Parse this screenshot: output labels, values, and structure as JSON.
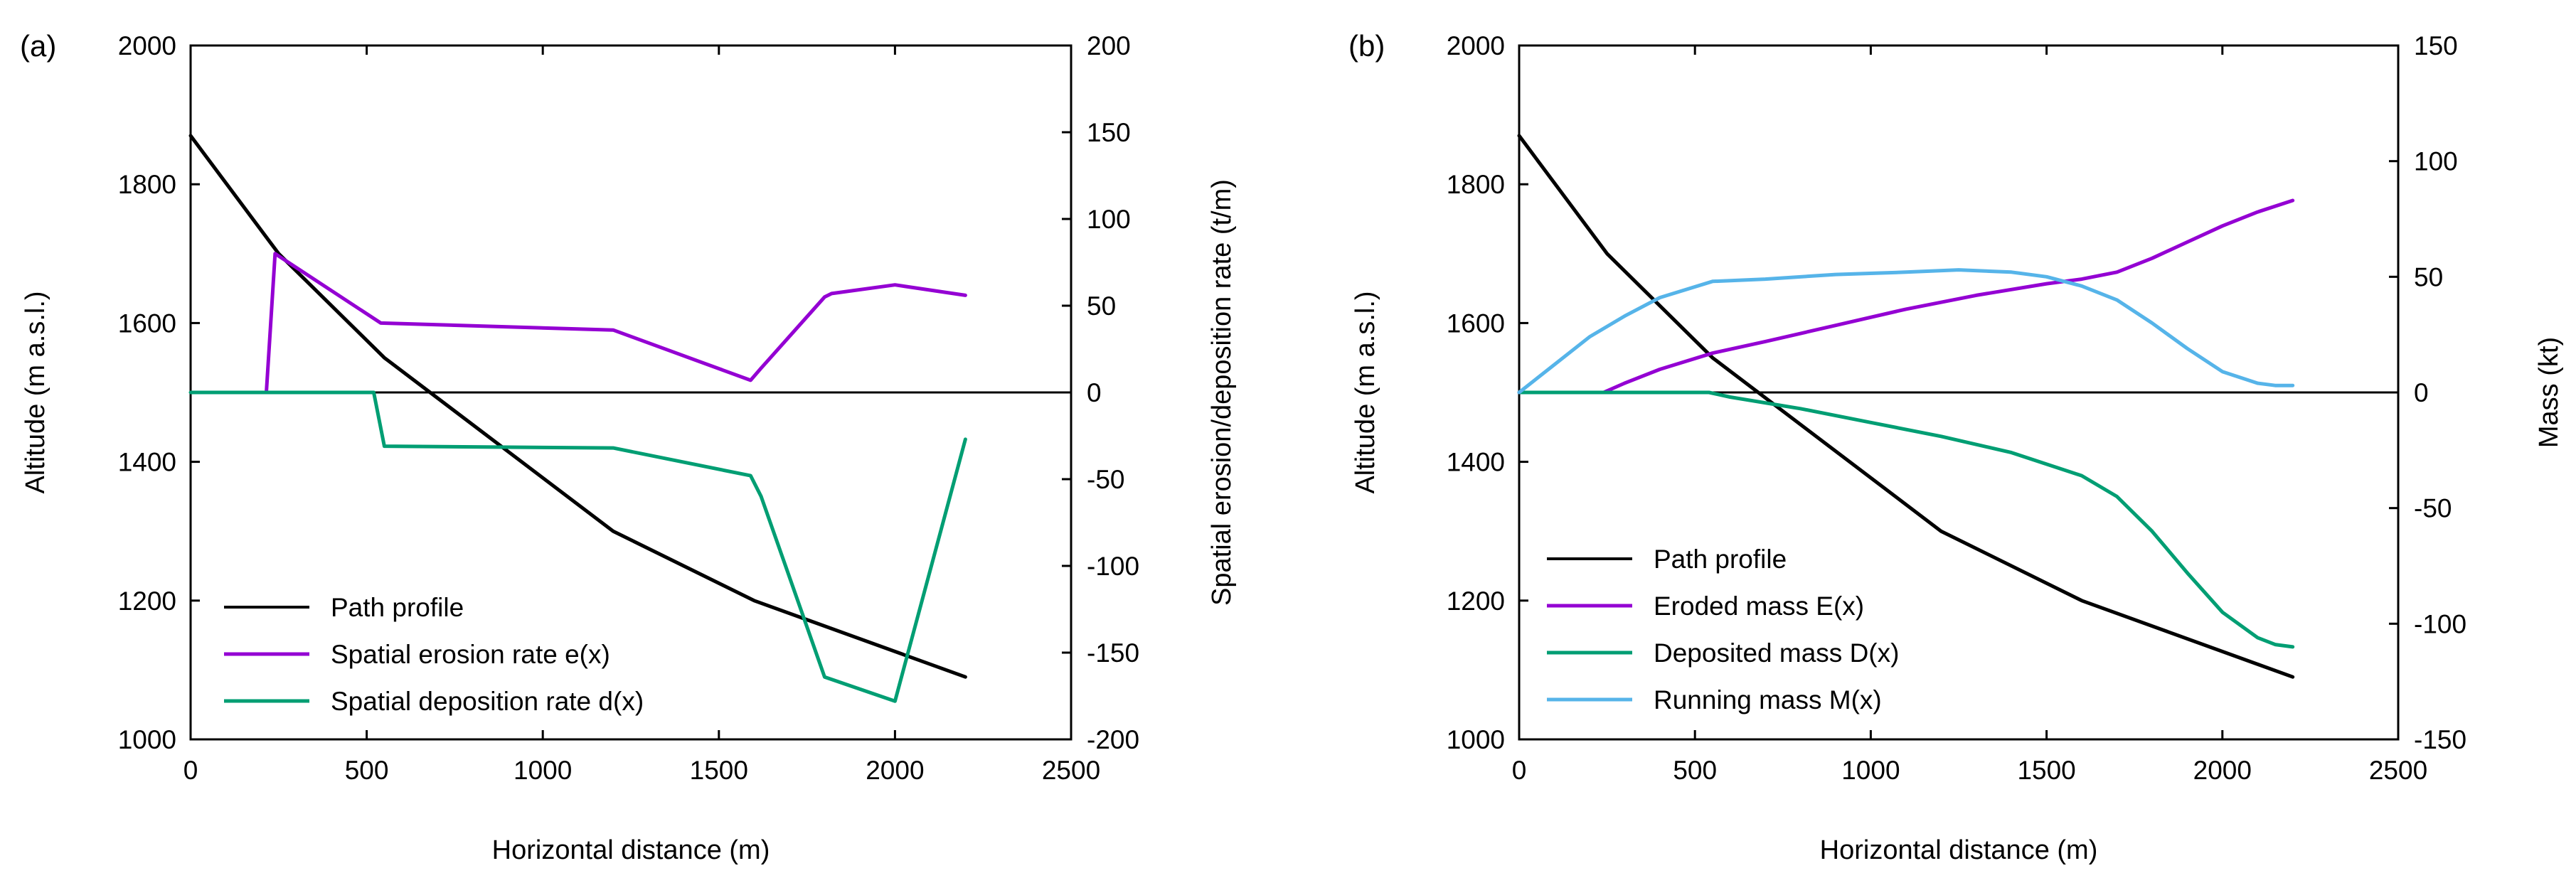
{
  "colors": {
    "path_profile": "#000000",
    "erosion": "#9400d3",
    "deposition": "#009e73",
    "running": "#56b4e9"
  },
  "chart_data": [
    {
      "panel": "(a)",
      "type": "line",
      "xlabel": "Horizontal distance (m)",
      "ylabel": "Altitude (m a.s.l.)",
      "y2label": "Spatial erosion/deposition rate (t/m)",
      "xlim": [
        0,
        2500
      ],
      "ylim": [
        1000,
        2000
      ],
      "y2lim": [
        -200,
        200
      ],
      "xticks": [
        0,
        500,
        1000,
        1500,
        2000,
        2500
      ],
      "yticks": [
        1000,
        1200,
        1400,
        1600,
        1800,
        2000
      ],
      "y2ticks": [
        -200,
        -150,
        -100,
        -50,
        0,
        50,
        100,
        150,
        200
      ],
      "legend_position": "bottom-left",
      "series": [
        {
          "name": "Path profile",
          "axis": "y",
          "color_key": "path_profile",
          "points": [
            [
              0,
              1870
            ],
            [
              250,
              1700
            ],
            [
              550,
              1550
            ],
            [
              1200,
              1300
            ],
            [
              1600,
              1200
            ],
            [
              2200,
              1090
            ]
          ]
        },
        {
          "name": "Spatial erosion rate e(x)",
          "axis": "y2",
          "color_key": "erosion",
          "points": [
            [
              215,
              0
            ],
            [
              240,
              80
            ],
            [
              540,
              40
            ],
            [
              1200,
              36
            ],
            [
              1590,
              7
            ],
            [
              1620,
              14
            ],
            [
              1800,
              55
            ],
            [
              1820,
              57
            ],
            [
              2000,
              62
            ],
            [
              2200,
              56
            ]
          ]
        },
        {
          "name": "Spatial deposition rate d(x)",
          "axis": "y2",
          "color_key": "deposition",
          "points": [
            [
              0,
              0
            ],
            [
              520,
              0
            ],
            [
              550,
              -31
            ],
            [
              1200,
              -32
            ],
            [
              1590,
              -48
            ],
            [
              1620,
              -60
            ],
            [
              1800,
              -164
            ],
            [
              2000,
              -178
            ],
            [
              2200,
              -27
            ]
          ]
        }
      ]
    },
    {
      "panel": "(b)",
      "type": "line",
      "xlabel": "Horizontal distance (m)",
      "ylabel": "Altitude (m a.s.l.)",
      "y2label": "Mass (kt)",
      "xlim": [
        0,
        2500
      ],
      "ylim": [
        1000,
        2000
      ],
      "y2lim": [
        -150,
        150
      ],
      "xticks": [
        0,
        500,
        1000,
        1500,
        2000,
        2500
      ],
      "yticks": [
        1000,
        1200,
        1400,
        1600,
        1800,
        2000
      ],
      "y2ticks": [
        -150,
        -100,
        -50,
        0,
        50,
        100,
        150
      ],
      "legend_position": "bottom-left",
      "series": [
        {
          "name": "Path profile",
          "axis": "y",
          "color_key": "path_profile",
          "points": [
            [
              0,
              1870
            ],
            [
              250,
              1700
            ],
            [
              550,
              1550
            ],
            [
              1200,
              1300
            ],
            [
              1600,
              1200
            ],
            [
              2200,
              1090
            ]
          ]
        },
        {
          "name": "Eroded mass E(x)",
          "axis": "y2",
          "color_key": "erosion",
          "points": [
            [
              0,
              0
            ],
            [
              240,
              0
            ],
            [
              300,
              4
            ],
            [
              400,
              10
            ],
            [
              550,
              17
            ],
            [
              700,
              22
            ],
            [
              900,
              29
            ],
            [
              1100,
              36
            ],
            [
              1300,
              42
            ],
            [
              1500,
              47
            ],
            [
              1600,
              49
            ],
            [
              1700,
              52
            ],
            [
              1800,
              58
            ],
            [
              1900,
              65
            ],
            [
              2000,
              72
            ],
            [
              2100,
              78
            ],
            [
              2200,
              83
            ]
          ]
        },
        {
          "name": "Deposited mass D(x)",
          "axis": "y2",
          "color_key": "deposition",
          "points": [
            [
              0,
              0
            ],
            [
              540,
              0
            ],
            [
              600,
              -2
            ],
            [
              800,
              -7
            ],
            [
              1000,
              -13
            ],
            [
              1200,
              -19
            ],
            [
              1400,
              -26
            ],
            [
              1600,
              -36
            ],
            [
              1700,
              -45
            ],
            [
              1800,
              -60
            ],
            [
              1900,
              -78
            ],
            [
              2000,
              -95
            ],
            [
              2100,
              -106
            ],
            [
              2150,
              -109
            ],
            [
              2200,
              -110
            ]
          ]
        },
        {
          "name": "Running mass M(x)",
          "axis": "y2",
          "color_key": "running",
          "points": [
            [
              0,
              0
            ],
            [
              100,
              12
            ],
            [
              200,
              24
            ],
            [
              300,
              33
            ],
            [
              400,
              41
            ],
            [
              550,
              48
            ],
            [
              700,
              49
            ],
            [
              900,
              51
            ],
            [
              1100,
              52
            ],
            [
              1250,
              53
            ],
            [
              1400,
              52
            ],
            [
              1500,
              50
            ],
            [
              1600,
              46
            ],
            [
              1700,
              40
            ],
            [
              1800,
              30
            ],
            [
              1900,
              19
            ],
            [
              2000,
              9
            ],
            [
              2100,
              4
            ],
            [
              2150,
              3
            ],
            [
              2200,
              3
            ]
          ]
        }
      ]
    }
  ]
}
